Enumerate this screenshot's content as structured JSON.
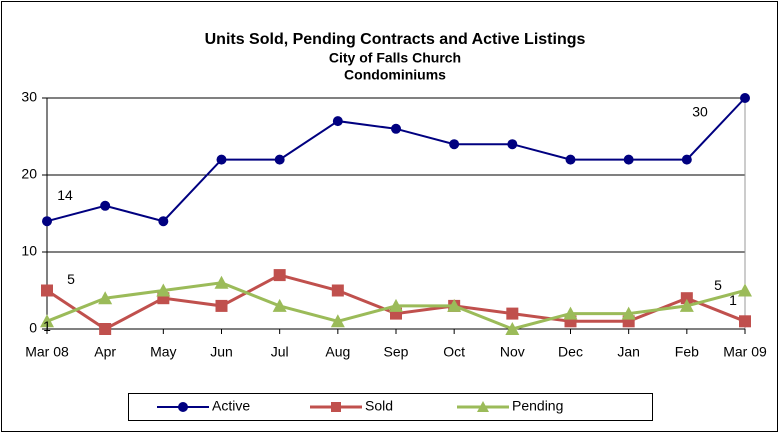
{
  "chart_data": {
    "type": "line",
    "title": "Units Sold, Pending Contracts and Active Listings",
    "subtitle": [
      "City of Falls Church",
      "Condominiums"
    ],
    "categories": [
      "Mar 08",
      "Apr",
      "May",
      "Jun",
      "Jul",
      "Aug",
      "Sep",
      "Oct",
      "Nov",
      "Dec",
      "Jan",
      "Feb",
      "Mar 09"
    ],
    "series": [
      {
        "name": "Active",
        "color": "#000080",
        "marker": "circle",
        "values": [
          14,
          16,
          14,
          22,
          22,
          27,
          26,
          24,
          24,
          22,
          22,
          22,
          30
        ]
      },
      {
        "name": "Sold",
        "color": "#c0504d",
        "marker": "square",
        "values": [
          5,
          0,
          4,
          3,
          7,
          5,
          2,
          3,
          2,
          1,
          1,
          4,
          1
        ]
      },
      {
        "name": "Pending",
        "color": "#9bbb59",
        "marker": "triangle",
        "values": [
          1,
          4,
          5,
          6,
          3,
          1,
          3,
          3,
          0,
          2,
          2,
          3,
          5
        ]
      }
    ],
    "ylim": [
      0,
      30
    ],
    "yticks": [
      0,
      10,
      20,
      30
    ],
    "grid": true,
    "legend": "bottom"
  }
}
